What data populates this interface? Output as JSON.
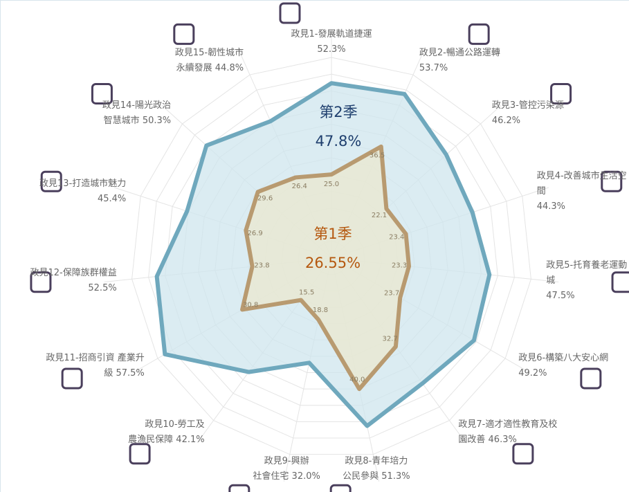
{
  "chart_data": {
    "type": "radar",
    "categories": [
      "政見1-發展軌道捷運",
      "政見2-暢通公路運轉",
      "政見3-管控污染源",
      "政見4-改善城市生活空間",
      "政見5-托育養老運動城",
      "政見6-構築八大安心網",
      "政見7-適才適性教育及校\n園改善",
      "政見8-青年培力\n公民參與",
      "政見9-興辦\n社會住宅",
      "政見10-勞工及\n農漁民保障",
      "政見11-招商引資 產業升\n級",
      "政見12-保障族群權益",
      "政見13-打造城市魅力",
      "政見14-陽光政治\n智慧城市",
      "政見15-韌性城市\n永續發展"
    ],
    "series": [
      {
        "name": "第2季",
        "color": "#6fa8bd",
        "fill": "#cfe6ee",
        "average": 47.8,
        "average_label": "47.8%",
        "values": [
          52.3,
          53.7,
          46.2,
          44.3,
          47.5,
          49.2,
          46.3,
          51.3,
          32.0,
          42.1,
          57.5,
          52.5,
          45.4,
          50.3,
          44.8
        ],
        "value_labels": [
          "52.3%",
          "53.7%",
          "46.2%",
          "44.3%",
          "47.5%",
          "49.2%",
          "46.3%",
          "51.3%",
          "32.0%",
          "42.1%",
          "57.5%",
          "52.5%",
          "45.4%",
          "50.3%",
          "44.8%"
        ]
      },
      {
        "name": "第1季",
        "color": "#b89a70",
        "fill": "#ebe8cf",
        "average": 26.55,
        "average_label": "26.55%",
        "values": [
          25.0,
          36.5,
          22.1,
          23.4,
          23.3,
          23.7,
          32.7,
          40.0,
          18.8,
          15.5,
          30.8,
          23.8,
          26.9,
          29.6,
          26.4
        ],
        "value_labels": [
          "25.0%",
          "36.5%",
          "22.1%",
          "23.4%",
          "23.3%",
          "23.7%",
          "32.7%",
          "40.0%",
          "18.8%",
          "15.5%",
          "30.8%",
          "23.8%",
          "26.9%",
          "29.6%",
          "26.4%"
        ]
      }
    ],
    "rlim": [
      0,
      60
    ]
  }
}
